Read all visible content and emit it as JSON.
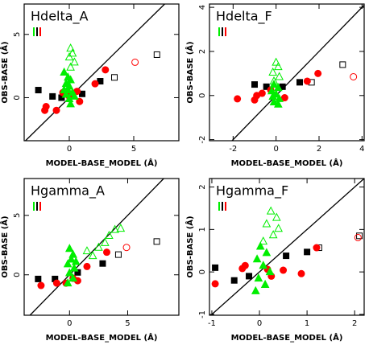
{
  "chart_data": [
    {
      "type": "scatter",
      "title": "Hdelta_A",
      "xlabel": "MODEL-BASE_MODEL (Å)",
      "ylabel": "OBS-BASE (Å)",
      "xlim": [
        -3.5,
        8.5
      ],
      "ylim": [
        -3.4,
        7.4
      ],
      "xticks": [
        0,
        5
      ],
      "yticks": [
        0,
        5
      ],
      "diagonal": true,
      "series": [
        {
          "marker": "square",
          "filled": true,
          "color": "#000000",
          "x": [
            -2.4,
            -1.3,
            -0.6,
            1.0,
            2.4
          ],
          "y": [
            0.6,
            0.1,
            0.0,
            0.3,
            1.3
          ]
        },
        {
          "marker": "square",
          "filled": false,
          "color": "#000000",
          "x": [
            3.5,
            6.8
          ],
          "y": [
            1.6,
            3.4
          ]
        },
        {
          "marker": "circle",
          "filled": true,
          "color": "#ff0000",
          "x": [
            -1.9,
            -1.8,
            -1.0,
            -0.5,
            0,
            0.6,
            0.8,
            2.0,
            2.8
          ],
          "y": [
            -1.0,
            -0.7,
            -1.0,
            0.4,
            0.1,
            0.5,
            -0.3,
            1.1,
            2.2
          ]
        },
        {
          "marker": "circle",
          "filled": false,
          "color": "#ff0000",
          "x": [
            5.1
          ],
          "y": [
            2.8
          ]
        },
        {
          "marker": "triangle",
          "filled": false,
          "color": "#00ee00",
          "x": [
            0.1,
            0.25,
            0,
            0.4,
            0.1
          ],
          "y": [
            3.9,
            3.5,
            3.2,
            2.8,
            2.4
          ]
        },
        {
          "marker": "triangle",
          "filled": true,
          "color": "#00ee00",
          "x": [
            -0.4,
            -0.1,
            0.1,
            -0.25,
            0,
            -0.1,
            0.25,
            -0.25,
            0,
            0.1,
            0.4,
            -0.4
          ],
          "y": [
            2.0,
            1.6,
            1.4,
            1.1,
            0.9,
            0.6,
            0.4,
            0.25,
            -0.1,
            -0.5,
            0.1,
            0.6
          ]
        }
      ]
    },
    {
      "type": "scatter",
      "title": "Hdelta_F",
      "xlabel": "MODEL-BASE_MODEL (Å)",
      "ylabel": "OBS-BASE (Å)",
      "xlim": [
        -3.1,
        4.1
      ],
      "ylim": [
        -2.05,
        4.15
      ],
      "xticks": [
        -2,
        0,
        2,
        4
      ],
      "yticks": [
        -2,
        0,
        2,
        4
      ],
      "diagonal": true,
      "series": [
        {
          "marker": "square",
          "filled": true,
          "color": "#000000",
          "x": [
            -1.0,
            -0.45,
            0.3,
            1.1
          ],
          "y": [
            0.5,
            0.4,
            0.4,
            0.6
          ]
        },
        {
          "marker": "square",
          "filled": false,
          "color": "#000000",
          "x": [
            1.65,
            3.1
          ],
          "y": [
            0.6,
            1.4
          ]
        },
        {
          "marker": "circle",
          "filled": true,
          "color": "#ff0000",
          "x": [
            -1.8,
            -1.0,
            -0.9,
            -0.65,
            -0.25,
            0.4,
            1.45,
            1.95
          ],
          "y": [
            -0.15,
            -0.2,
            0.0,
            0.1,
            0.25,
            -0.1,
            0.65,
            1.0
          ]
        },
        {
          "marker": "circle",
          "filled": false,
          "color": "#ff0000",
          "x": [
            3.6
          ],
          "y": [
            0.85
          ]
        },
        {
          "marker": "triangle",
          "filled": false,
          "color": "#00ee00",
          "x": [
            0,
            0.1,
            -0.15,
            0.15,
            -0.1
          ],
          "y": [
            1.5,
            1.3,
            1.05,
            0.85,
            0.65
          ]
        },
        {
          "marker": "triangle",
          "filled": true,
          "color": "#00ee00",
          "x": [
            -0.1,
            0.1,
            -0.2,
            0,
            -0.15,
            0.15,
            -0.1,
            0.1
          ],
          "y": [
            0.5,
            0.35,
            0.2,
            0.05,
            -0.05,
            -0.15,
            -0.3,
            -0.4
          ]
        }
      ]
    },
    {
      "type": "scatter",
      "title": "Hgamma_A",
      "xlabel": "MODEL-BASE_MODEL (Å)",
      "ylabel": "OBS-BASE (Å)",
      "xlim": [
        -3.9,
        9.4
      ],
      "ylim": [
        -3.4,
        8.1
      ],
      "xticks": [
        0,
        5
      ],
      "yticks": [
        0,
        5
      ],
      "diagonal": true,
      "series": [
        {
          "marker": "square",
          "filled": true,
          "color": "#000000",
          "x": [
            -2.7,
            -1.25,
            0.7,
            2.85
          ],
          "y": [
            -0.35,
            -0.35,
            0.2,
            0.95
          ]
        },
        {
          "marker": "square",
          "filled": false,
          "color": "#000000",
          "x": [
            4.2,
            7.5
          ],
          "y": [
            1.7,
            2.8
          ]
        },
        {
          "marker": "circle",
          "filled": true,
          "color": "#ff0000",
          "x": [
            -2.45,
            -1.1,
            -0.3,
            0.3,
            0.7,
            1.5,
            3.2
          ],
          "y": [
            -0.9,
            -0.7,
            -0.7,
            -0.3,
            -0.5,
            0.7,
            1.9
          ]
        },
        {
          "marker": "circle",
          "filled": false,
          "color": "#ff0000",
          "x": [
            4.9
          ],
          "y": [
            2.3
          ]
        },
        {
          "marker": "triangle",
          "filled": false,
          "color": "#00ee00",
          "x": [
            1.5,
            2.5,
            3.05,
            3.4,
            3.9,
            4.4,
            2.0
          ],
          "y": [
            2.0,
            2.3,
            2.7,
            3.3,
            3.8,
            3.9,
            1.6
          ]
        },
        {
          "marker": "triangle",
          "filled": true,
          "color": "#00ee00",
          "x": [
            0,
            0.3,
            0.15,
            -0.15,
            0.4,
            0,
            0.3,
            -0.15,
            0.55
          ],
          "y": [
            2.2,
            1.7,
            1.3,
            0.9,
            0.55,
            0.15,
            -0.3,
            -0.7,
            1.1
          ]
        }
      ]
    },
    {
      "type": "scatter",
      "title": "Hgamma_F",
      "xlabel": "MODEL-BASE_MODEL (Å)",
      "ylabel": "OBS-BASE (Å)",
      "xlim": [
        -1.05,
        2.2
      ],
      "ylim": [
        -1.02,
        2.2
      ],
      "xticks": [
        -1,
        0,
        1,
        2
      ],
      "yticks": [
        -1,
        0,
        1,
        2
      ],
      "diagonal": true,
      "series": [
        {
          "marker": "square",
          "filled": true,
          "color": "#000000",
          "x": [
            -0.93,
            -0.53,
            -0.22,
            0.56,
            1.0
          ],
          "y": [
            0.1,
            -0.2,
            -0.1,
            0.38,
            0.47
          ]
        },
        {
          "marker": "square",
          "filled": false,
          "color": "#000000",
          "x": [
            1.25,
            2.1
          ],
          "y": [
            0.57,
            0.85
          ]
        },
        {
          "marker": "circle",
          "filled": true,
          "color": "#ff0000",
          "x": [
            -0.93,
            -0.36,
            -0.3,
            0.17,
            0.25,
            0.5,
            0.88,
            1.2
          ],
          "y": [
            -0.28,
            0.08,
            0.15,
            0.06,
            -0.1,
            0.04,
            -0.04,
            0.57
          ]
        },
        {
          "marker": "circle",
          "filled": false,
          "color": "#ff0000",
          "x": [
            2.07
          ],
          "y": [
            0.81
          ]
        },
        {
          "marker": "triangle",
          "filled": false,
          "color": "#00ee00",
          "x": [
            0.24,
            0.36,
            0.15,
            0.4,
            0.29,
            0.08
          ],
          "y": [
            1.43,
            1.28,
            1.13,
            1.02,
            0.87,
            0.72
          ]
        },
        {
          "marker": "triangle",
          "filled": true,
          "color": "#00ee00",
          "x": [
            0.02,
            0.15,
            -0.05,
            0.08,
            0.22,
            -0.02,
            0.12,
            -0.08
          ],
          "y": [
            0.6,
            0.45,
            0.3,
            0.15,
            0,
            -0.15,
            -0.3,
            -0.45
          ]
        }
      ]
    }
  ]
}
